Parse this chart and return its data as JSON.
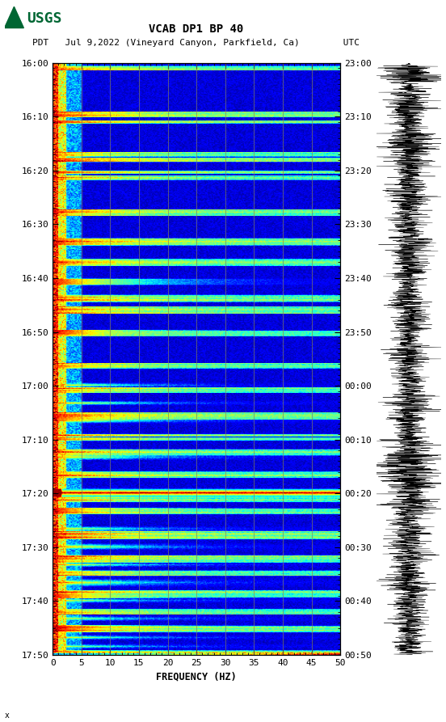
{
  "title_line1": "VCAB DP1 BP 40",
  "title_line2": "PDT   Jul 9,2022 (Vineyard Canyon, Parkfield, Ca)        UTC",
  "xlabel": "FREQUENCY (HZ)",
  "freq_min": 0,
  "freq_max": 50,
  "time_labels_left": [
    "16:00",
    "16:10",
    "16:20",
    "16:30",
    "16:40",
    "16:50",
    "17:00",
    "17:10",
    "17:20",
    "17:30",
    "17:40",
    "17:50"
  ],
  "time_labels_right": [
    "23:00",
    "23:10",
    "23:20",
    "23:30",
    "23:40",
    "23:50",
    "00:00",
    "00:10",
    "00:20",
    "00:30",
    "00:40",
    "00:50"
  ],
  "n_time": 660,
  "n_freq": 250,
  "background_color": "#ffffff",
  "freq_gridlines": [
    5,
    10,
    15,
    20,
    25,
    30,
    35,
    40,
    45
  ],
  "xtick_major": [
    0,
    5,
    10,
    15,
    20,
    25,
    30,
    35,
    40,
    45,
    50
  ],
  "xtick_labels": [
    "0",
    "5",
    "10",
    "15",
    "20",
    "25",
    "30",
    "35",
    "40",
    "45",
    "50"
  ],
  "usgs_color": "#006633"
}
